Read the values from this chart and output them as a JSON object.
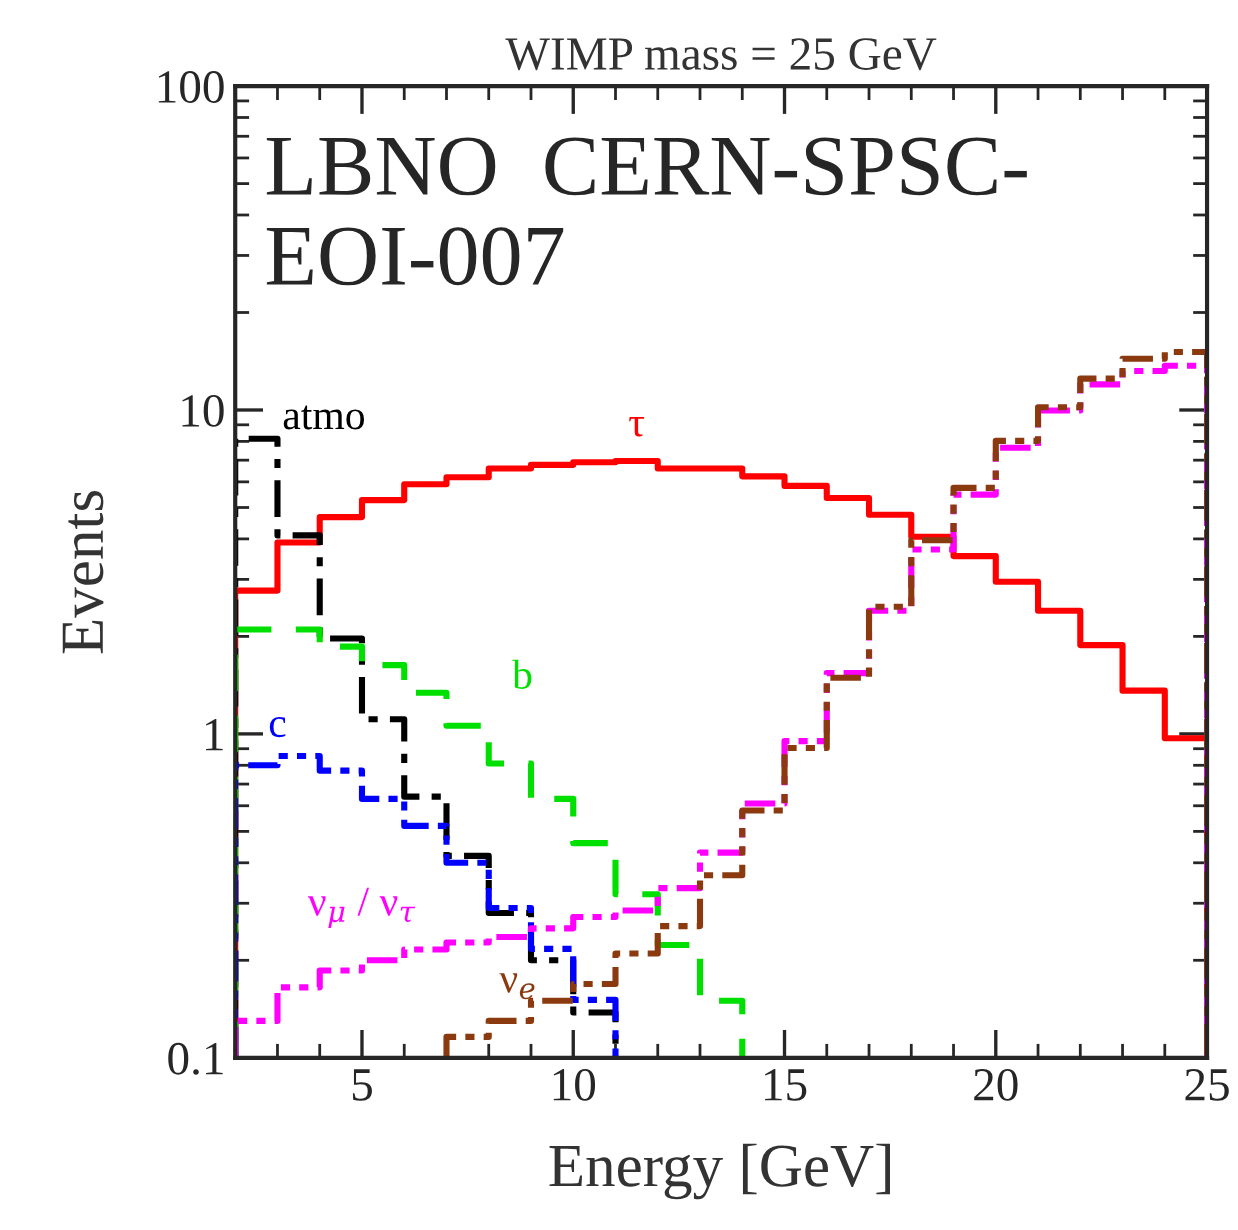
{
  "chart_data": {
    "type": "histogram",
    "title": "WIMP mass = 25 GeV",
    "xlabel": "Energy [GeV]",
    "ylabel": "Events",
    "bins": [
      2,
      3,
      4,
      5,
      6,
      7,
      8,
      9,
      10,
      11,
      12,
      13,
      14,
      15,
      16,
      17,
      18,
      19,
      20,
      21,
      22,
      23,
      24,
      25
    ],
    "series": [
      {
        "name": "τ",
        "color": "#ff0000",
        "line_style": "solid",
        "values": [
          2.77,
          3.9,
          4.67,
          5.27,
          5.9,
          6.2,
          6.6,
          6.77,
          6.9,
          6.96,
          6.6,
          6.6,
          6.24,
          5.83,
          5.35,
          4.75,
          4.06,
          3.54,
          2.95,
          2.4,
          1.88,
          1.36,
          0.97
        ]
      },
      {
        "name": "atmo",
        "color": "#000000",
        "line_style": "dashdot",
        "bins": [
          2,
          3,
          4,
          5,
          6,
          7,
          8,
          9,
          10,
          11
        ],
        "values": [
          8.15,
          4.1,
          1.97,
          1.11,
          0.64,
          0.42,
          0.28,
          0.2,
          0.138
        ]
      },
      {
        "name": "b",
        "color": "#00e000",
        "line_style": "dashed",
        "bins": [
          2,
          3,
          4,
          5,
          6,
          7,
          8,
          9,
          10,
          11,
          12,
          13,
          14
        ],
        "values": [
          2.1,
          2.1,
          1.86,
          1.63,
          1.34,
          1.06,
          0.81,
          0.63,
          0.46,
          0.32,
          0.223,
          0.15
        ]
      },
      {
        "name": "c",
        "color": "#0000ff",
        "line_style": "dashdotdot",
        "bins": [
          2,
          3,
          4,
          5,
          6,
          7,
          8,
          9,
          10,
          11
        ],
        "values": [
          0.8,
          0.855,
          0.77,
          0.63,
          0.52,
          0.4,
          0.29,
          0.217,
          0.151
        ]
      },
      {
        "name": "ν$_{μ}$ / ν$_{τ}$",
        "color": "#ff00ff",
        "line_style": "dashdotdot",
        "values": [
          0.13,
          0.165,
          0.186,
          0.2,
          0.216,
          0.227,
          0.236,
          0.251,
          0.272,
          0.285,
          0.334,
          0.43,
          0.61,
          0.95,
          1.54,
          2.4,
          3.71,
          5.48,
          7.65,
          9.96,
          12.0,
          13.2,
          13.7
        ]
      },
      {
        "name": "ν$_{e}$",
        "color": "#8b3a10",
        "line_style": "dashdotdot",
        "bins": [
          7,
          8,
          9,
          10,
          11,
          12,
          13,
          14,
          15,
          16,
          17,
          18,
          19,
          20,
          21,
          22,
          23,
          24,
          25
        ],
        "values": [
          0.116,
          0.13,
          0.15,
          0.169,
          0.21,
          0.255,
          0.366,
          0.58,
          0.905,
          1.49,
          2.47,
          3.96,
          5.75,
          8.03,
          10.2,
          12.5,
          14.4,
          15.1
        ]
      }
    ],
    "annotations": [
      "LBNO  CERN-SPSC-\nEOI-007"
    ],
    "log": "y",
    "xlim": [
      2,
      25
    ],
    "ylim": [
      0.1,
      100
    ],
    "xticks": [
      5,
      10,
      15,
      20,
      25
    ],
    "yticks": [
      0.1,
      1,
      10,
      100
    ],
    "grid": false,
    "legend": false
  }
}
